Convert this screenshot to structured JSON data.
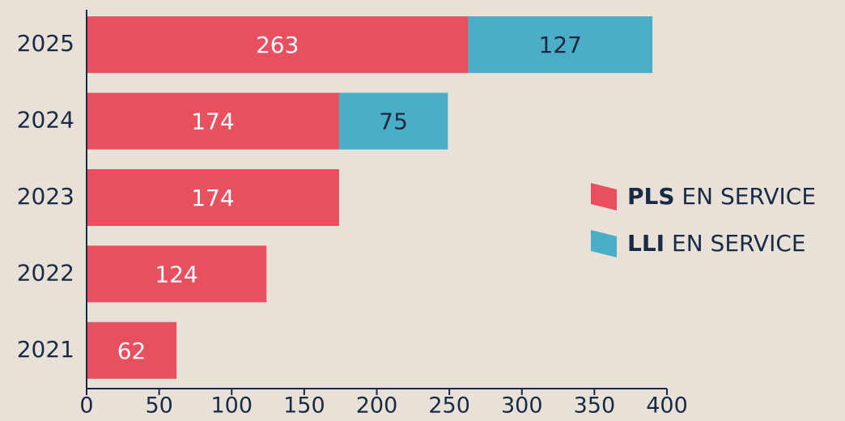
{
  "chart_data": {
    "type": "stacked-bar-horizontal",
    "categories": [
      "2025",
      "2024",
      "2023",
      "2022",
      "2021"
    ],
    "series": [
      {
        "name": "PLS EN SERVICE",
        "color": "#e8505f",
        "values": [
          263,
          174,
          174,
          124,
          62
        ]
      },
      {
        "name": "LLI EN SERVICE",
        "color": "#4aaec6",
        "values": [
          127,
          75,
          null,
          null,
          null
        ]
      }
    ],
    "xlim": [
      0,
      400
    ],
    "xticks": [
      0,
      50,
      100,
      150,
      200,
      250,
      300,
      350,
      400
    ],
    "legend": "right"
  }
}
